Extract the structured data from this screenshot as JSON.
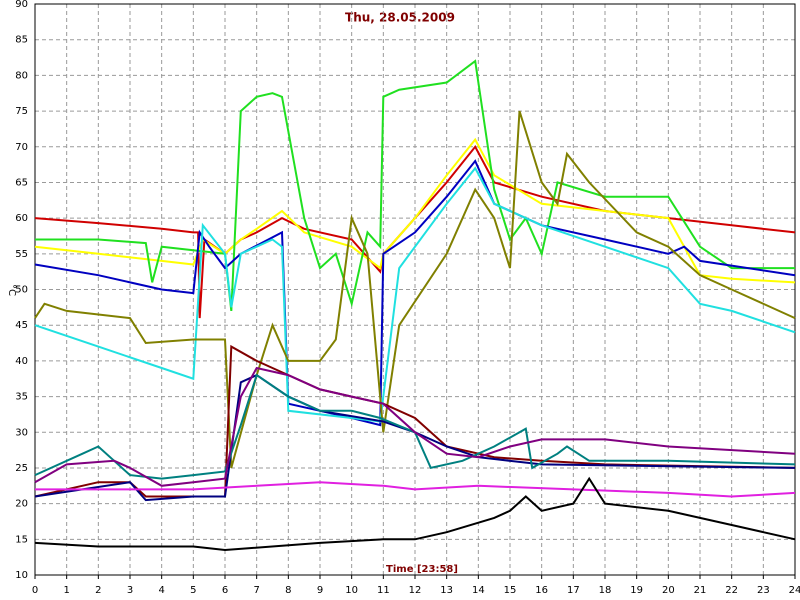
{
  "chart_data": {
    "type": "line",
    "title": "Thu, 28.05.2009",
    "x_label": "Time [23:58]",
    "y_label": "°C",
    "xlim": [
      0,
      24
    ],
    "ylim": [
      10,
      90
    ],
    "xticks": [
      0,
      1,
      2,
      3,
      4,
      5,
      6,
      7,
      8,
      9,
      10,
      11,
      12,
      13,
      14,
      15,
      16,
      17,
      18,
      19,
      20,
      21,
      22,
      23,
      24
    ],
    "yticks": [
      10,
      15,
      20,
      25,
      30,
      35,
      40,
      45,
      50,
      55,
      60,
      65,
      70,
      75,
      80,
      85,
      90
    ],
    "grid": true,
    "series": [
      {
        "color": "#d00000",
        "x": [
          0,
          2,
          4,
          5,
          5.15,
          5.2,
          5.35,
          6,
          6.5,
          7,
          7.8,
          8.5,
          10,
          10.9,
          11,
          12,
          13,
          13.9,
          14.5,
          16,
          18,
          20,
          22,
          24
        ],
        "values": [
          60,
          59.3,
          58.5,
          58,
          58,
          46,
          57,
          55,
          57,
          58,
          60,
          58.5,
          57,
          52.5,
          55,
          60,
          65,
          70,
          65,
          63,
          61,
          60,
          59,
          58
        ]
      },
      {
        "color": "#ffff00",
        "x": [
          0,
          2,
          4,
          5,
          5.3,
          6,
          6.5,
          7,
          7.8,
          8.5,
          10,
          10.9,
          11,
          12,
          13,
          13.9,
          14.5,
          16,
          18,
          20,
          21,
          22,
          24
        ],
        "values": [
          56,
          55,
          54,
          53.5,
          57,
          55,
          57,
          58.5,
          61,
          58,
          56,
          53,
          55,
          60,
          66,
          71,
          66,
          62,
          61,
          60,
          52,
          51.5,
          51
        ]
      },
      {
        "color": "#20e020",
        "x": [
          0,
          2,
          3.5,
          3.7,
          4,
          5,
          6,
          6.2,
          6.5,
          7,
          7.5,
          7.8,
          8.5,
          9,
          9.5,
          10,
          10.5,
          10.9,
          11,
          11.5,
          13,
          13.9,
          14.5,
          15,
          15.5,
          16,
          16.5,
          18,
          20,
          21,
          22,
          24
        ],
        "values": [
          57,
          57,
          56.5,
          51,
          56,
          55.5,
          55,
          47,
          75,
          77,
          77.5,
          77,
          60,
          53,
          55,
          48,
          58,
          56,
          77,
          78,
          79,
          82,
          64,
          57,
          60,
          55,
          65,
          63,
          63,
          56,
          53,
          53
        ]
      },
      {
        "color": "#0000c0",
        "x": [
          0,
          2,
          4,
          5,
          5.2,
          5.5,
          6,
          6.5,
          7.8,
          8,
          9,
          10,
          10.9,
          11,
          12,
          13,
          13.9,
          14.5,
          16,
          18,
          20,
          20.5,
          21,
          24
        ],
        "values": [
          53.5,
          52,
          50,
          49.5,
          58,
          56,
          53,
          55,
          58,
          34,
          33,
          32,
          31,
          55,
          58,
          63,
          68,
          62,
          59,
          57,
          55,
          56,
          54,
          52
        ]
      },
      {
        "color": "#20e0e0",
        "x": [
          0,
          2,
          4,
          5,
          5.3,
          6,
          6.2,
          6.5,
          7.5,
          7.8,
          8,
          10,
          10.9,
          11.5,
          13,
          13.9,
          14.5,
          16,
          18,
          20,
          21,
          22,
          24
        ],
        "values": [
          45,
          42,
          39,
          37.5,
          59,
          55,
          47.5,
          55,
          57,
          56,
          33,
          32,
          31.5,
          53,
          62,
          67,
          62,
          59,
          56,
          53,
          48,
          47,
          44
        ]
      },
      {
        "color": "#808000",
        "x": [
          0,
          0.3,
          1,
          3,
          3.5,
          5,
          6,
          6.2,
          7,
          7.5,
          8,
          9,
          9.5,
          10,
          10.5,
          11,
          11.5,
          13,
          13.9,
          14.5,
          15,
          15.3,
          16,
          16.5,
          16.8,
          17.5,
          19,
          20,
          21,
          22,
          24
        ],
        "values": [
          46,
          48,
          47,
          46,
          42.5,
          43,
          43,
          25,
          38,
          45,
          40,
          40,
          43,
          60,
          55,
          30,
          45,
          55,
          64,
          60,
          53,
          75,
          65,
          62,
          69,
          65,
          58,
          56,
          52,
          50,
          46
        ]
      },
      {
        "color": "#800000",
        "x": [
          0,
          2,
          3,
          3.5,
          5,
          6,
          6.2,
          7,
          7.5,
          8,
          9,
          10,
          11,
          12,
          13,
          14.5,
          16,
          18,
          24
        ],
        "values": [
          21,
          23,
          23,
          21,
          21,
          21,
          42,
          40,
          39,
          38,
          36,
          35,
          34,
          32,
          28,
          26.5,
          26,
          25.5,
          25
        ]
      },
      {
        "color": "#000080",
        "x": [
          0,
          3,
          3.5,
          5,
          6,
          6.5,
          7,
          8,
          9,
          11,
          12,
          13,
          14,
          16,
          24
        ],
        "values": [
          21,
          23,
          20.5,
          21,
          21,
          37,
          38,
          35,
          33,
          31.5,
          30,
          28,
          26.5,
          25.5,
          25
        ]
      },
      {
        "color": "#008080",
        "x": [
          0,
          1.5,
          2,
          3,
          4,
          5,
          6,
          6.5,
          7,
          8,
          9,
          10,
          10.9,
          12,
          12.5,
          13.5,
          14.5,
          15.5,
          15.7,
          16.5,
          16.8,
          17.5,
          20,
          24
        ],
        "values": [
          24,
          27,
          28,
          24,
          23.5,
          24,
          24.5,
          31,
          38,
          35,
          33,
          33,
          32,
          30,
          25,
          26,
          28,
          30.5,
          25,
          27,
          28,
          26,
          26,
          25.5
        ]
      },
      {
        "color": "#800080",
        "x": [
          0,
          1,
          2.5,
          3,
          4,
          5,
          6,
          6.5,
          7,
          8,
          9,
          10,
          11,
          12,
          13,
          14,
          15,
          16,
          18,
          20,
          24
        ],
        "values": [
          23,
          25.5,
          26,
          25,
          22.5,
          23,
          23.5,
          35,
          39,
          38,
          36,
          35,
          34,
          30,
          27,
          26.5,
          28,
          29,
          29,
          28,
          27
        ]
      },
      {
        "color": "#e020e0",
        "x": [
          0,
          3,
          5,
          7,
          9,
          11,
          12,
          14,
          17,
          20,
          22,
          24
        ],
        "values": [
          22,
          22,
          22,
          22.5,
          23,
          22.5,
          22,
          22.5,
          22,
          21.5,
          21,
          21.5
        ]
      },
      {
        "color": "#000000",
        "x": [
          0,
          2,
          5,
          6,
          9,
          11,
          12,
          13,
          14.5,
          15,
          15.5,
          16,
          17,
          17.5,
          18,
          20,
          22,
          24
        ],
        "values": [
          14.5,
          14,
          14,
          13.5,
          14.5,
          15,
          15,
          16,
          18,
          19,
          21,
          19,
          20,
          23.5,
          20,
          19,
          17,
          15
        ]
      }
    ]
  }
}
